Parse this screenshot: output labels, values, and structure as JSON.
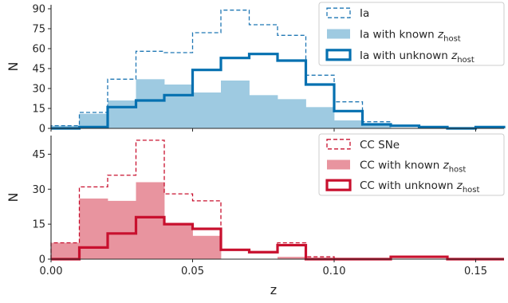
{
  "chart_data": [
    {
      "type": "histogram",
      "panel": "top",
      "ylabel": "N",
      "xlabel": "",
      "xlim": [
        0.0,
        0.16
      ],
      "ylim": [
        0,
        93
      ],
      "yticks": [
        0,
        15,
        30,
        45,
        60,
        75,
        90
      ],
      "yticklabels": [
        "0",
        "15",
        "30",
        "45",
        "60",
        "75",
        "90"
      ],
      "bin_edges": [
        0.0,
        0.01,
        0.02,
        0.03,
        0.04,
        0.05,
        0.06,
        0.07,
        0.08,
        0.09,
        0.1,
        0.11,
        0.12,
        0.13,
        0.14,
        0.15,
        0.16
      ],
      "legend_position": "top-right",
      "series": [
        {
          "name": "Ia",
          "name_sub": "",
          "style": "step-dashed",
          "color": "#1f77b4",
          "values": [
            2,
            12,
            37,
            58,
            57,
            72,
            89,
            78,
            70,
            40,
            20,
            5,
            2,
            1,
            0,
            1
          ]
        },
        {
          "name": "Ia with known z",
          "name_sub": "host",
          "style": "filled",
          "color": "#9ecae1",
          "values": [
            2,
            11,
            21,
            37,
            33,
            27,
            36,
            25,
            22,
            16,
            6,
            2,
            0,
            0,
            0,
            0
          ]
        },
        {
          "name": "Ia with unknown z",
          "name_sub": "host",
          "style": "step-thick",
          "color": "#0570b0",
          "values": [
            0,
            1,
            16,
            21,
            25,
            44,
            53,
            56,
            51,
            33,
            13,
            3,
            2,
            1,
            0,
            1
          ]
        }
      ]
    },
    {
      "type": "histogram",
      "panel": "bottom",
      "ylabel": "N",
      "xlabel": "z",
      "xlim": [
        0.0,
        0.16
      ],
      "ylim": [
        0,
        53
      ],
      "yticks": [
        0,
        15,
        30,
        45
      ],
      "yticklabels": [
        "0",
        "15",
        "30",
        "45"
      ],
      "xticks": [
        0.0,
        0.05,
        0.1,
        0.15
      ],
      "xticklabels": [
        "0.00",
        "0.05",
        "0.10",
        "0.15"
      ],
      "bin_edges": [
        0.0,
        0.01,
        0.02,
        0.03,
        0.04,
        0.05,
        0.06,
        0.07,
        0.08,
        0.09,
        0.1,
        0.11,
        0.12,
        0.13,
        0.14,
        0.15,
        0.16
      ],
      "legend_position": "top-right",
      "series": [
        {
          "name": "CC SNe",
          "name_sub": "",
          "style": "step-dashed",
          "color": "#c8102e",
          "values": [
            7,
            31,
            36,
            51,
            28,
            25,
            4,
            3,
            7,
            1,
            0,
            0,
            1,
            1,
            0,
            0
          ]
        },
        {
          "name": "CC with known z",
          "name_sub": "host",
          "style": "filled",
          "color": "#e8949f",
          "values": [
            7,
            26,
            25,
            33,
            15,
            10,
            0,
            0,
            1,
            0,
            0,
            0,
            0,
            0,
            0,
            0
          ]
        },
        {
          "name": "CC with unknown z",
          "name_sub": "host",
          "style": "step-thick",
          "color": "#c8102e",
          "values": [
            0,
            5,
            11,
            18,
            15,
            13,
            4,
            3,
            6,
            0,
            0,
            0,
            1,
            1,
            0,
            0
          ]
        }
      ]
    }
  ]
}
